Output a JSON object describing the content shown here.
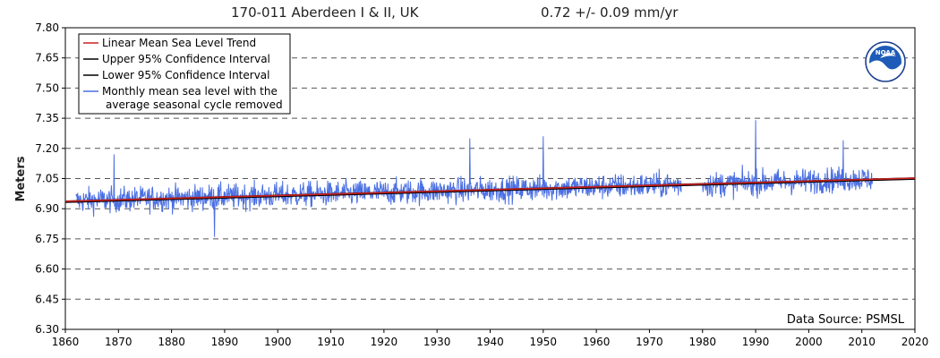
{
  "header": {
    "station_title": "170-011 Aberdeen I & II, UK",
    "trend_text": "0.72 +/-  0.09 mm/yr"
  },
  "chart_data": {
    "type": "line",
    "ylabel": "Meters",
    "xlim": [
      1860,
      2020
    ],
    "ylim": [
      6.3,
      7.8
    ],
    "x_ticks": [
      1860,
      1870,
      1880,
      1890,
      1900,
      1910,
      1920,
      1930,
      1940,
      1950,
      1960,
      1970,
      1980,
      1990,
      2000,
      2010,
      2020
    ],
    "y_ticks": [
      "7.80",
      "7.65",
      "7.50",
      "7.35",
      "7.20",
      "7.05",
      "6.90",
      "6.75",
      "6.60",
      "6.45",
      "6.30"
    ],
    "y_tick_values": [
      7.8,
      7.65,
      7.5,
      7.35,
      7.2,
      7.05,
      6.9,
      6.75,
      6.6,
      6.45,
      6.3
    ],
    "grid": "horizontal dashed",
    "legend_position": "top-left",
    "legend": [
      {
        "label": "Linear Mean Sea Level Trend",
        "color": "#cc2222"
      },
      {
        "label": "Upper 95% Confidence Interval",
        "color": "#000000"
      },
      {
        "label": "Lower 95% Confidence Interval",
        "color": "#000000"
      },
      {
        "label": "Monthly mean sea level with the",
        "label2": "average seasonal cycle removed",
        "color": "#4a6fe3"
      }
    ],
    "trend": {
      "x": [
        1860,
        2020
      ],
      "y": [
        6.935,
        7.05
      ]
    },
    "series": [
      {
        "name": "Monthly mean sea level with the average seasonal cycle removed",
        "color": "#4a6fe3",
        "segments": [
          {
            "x_start": 1862.0,
            "x_end": 1976.0,
            "y_start": 6.94,
            "y_end": 7.02
          },
          {
            "x_start": 1980.0,
            "x_end": 2012.0,
            "y_start": 7.02,
            "y_end": 7.05
          }
        ],
        "highlights": [
          {
            "x": 1869.2,
            "y": 7.17
          },
          {
            "x": 1888.1,
            "y": 6.76
          },
          {
            "x": 1936.2,
            "y": 7.25
          },
          {
            "x": 1950.0,
            "y": 7.26
          },
          {
            "x": 1990.0,
            "y": 7.34
          },
          {
            "x": 2006.5,
            "y": 7.24
          }
        ]
      }
    ],
    "colors": {
      "trend": "#cc2222",
      "ci": "#000000",
      "series": "#4a6fe3",
      "grid": "#555555"
    },
    "source": "Data Source: PSMSL"
  },
  "logo": {
    "text": "NOAA"
  }
}
